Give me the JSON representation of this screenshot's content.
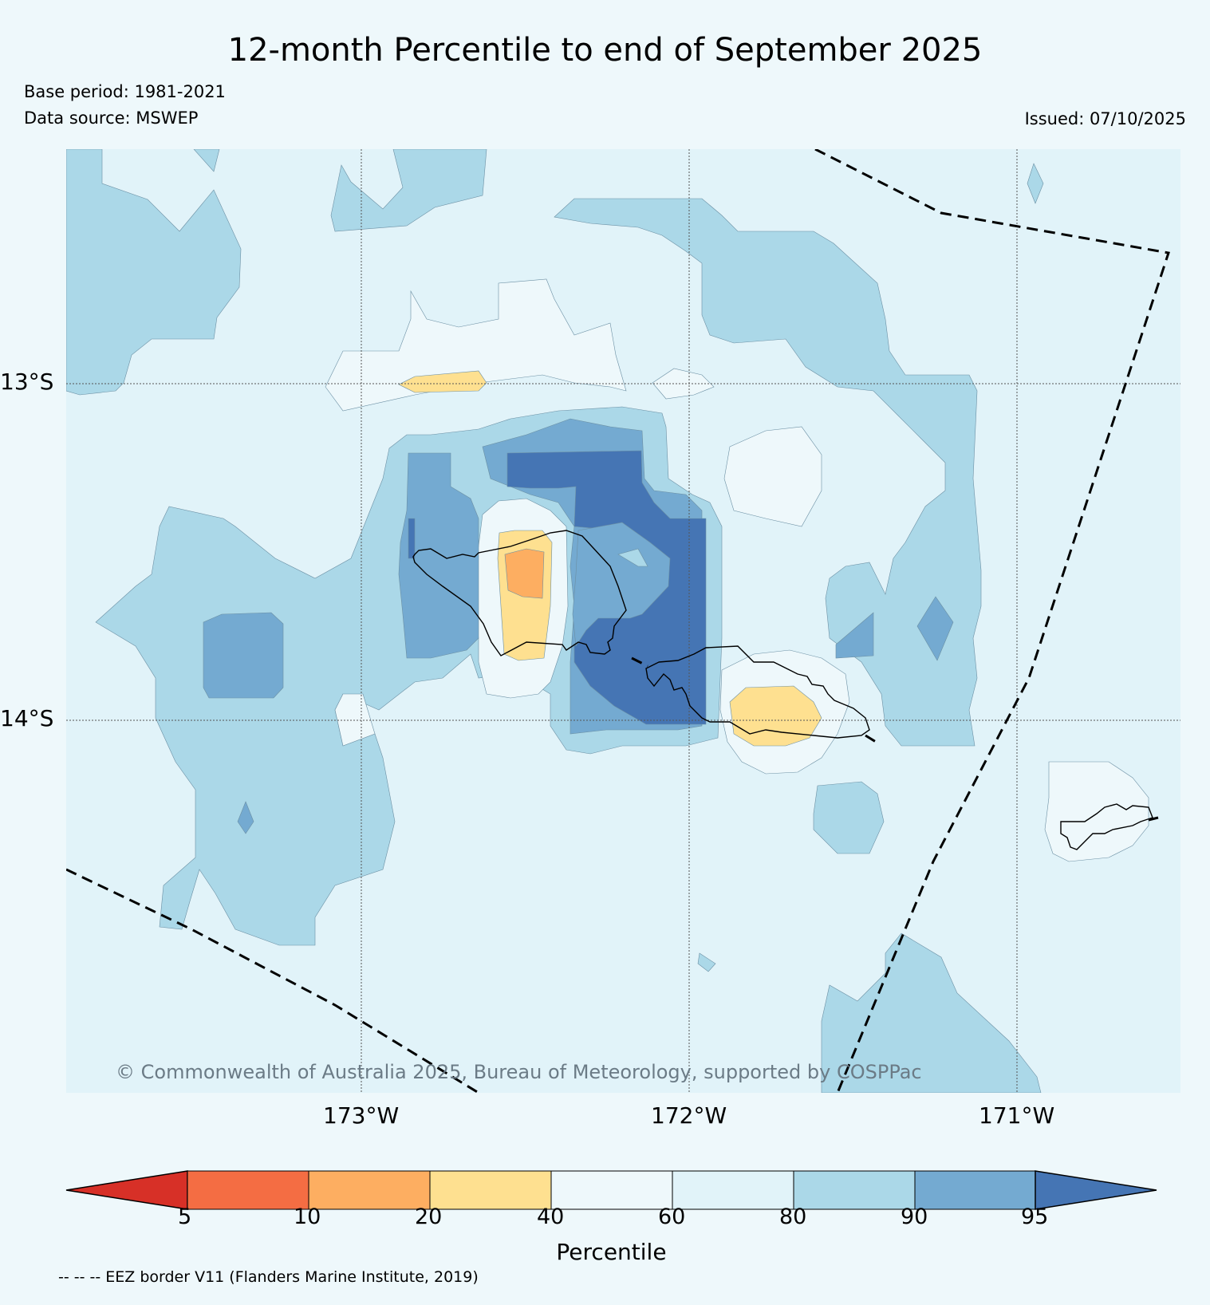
{
  "header": {
    "title": "12-month Percentile to end of September 2025",
    "base_period": "Base period: 1981-2021",
    "data_source": "Data source: MSWEP",
    "issued": "Issued: 07/10/2025"
  },
  "map": {
    "lat_labels": [
      "13°S",
      "14°S"
    ],
    "lon_labels": [
      "173°W",
      "172°W",
      "171°W"
    ],
    "copyright": "© Commonwealth of Australia 2025, Bureau of Meteorology, supported by COSPPac",
    "colors": {
      "background": "#e1f3f9",
      "p80_90": "#abd8e8",
      "p90_95": "#74aad1",
      "p95_plus": "#4575b4",
      "p60_80": "#e1f3f9",
      "p40_60": "#eef8fb",
      "p20_40": "#fee090",
      "p10_20": "#fdae61",
      "p5_10": "#f46d43",
      "p0_5": "#d73027"
    }
  },
  "colorbar": {
    "title": "Percentile",
    "ticks": [
      "5",
      "10",
      "20",
      "40",
      "60",
      "80",
      "90",
      "95"
    ],
    "colors": [
      "#d73027",
      "#f46d43",
      "#fdae61",
      "#fee090",
      "#eef8fb",
      "#e1f3f9",
      "#abd8e8",
      "#74aad1",
      "#4575b4"
    ]
  },
  "footer": {
    "eez_note": "-- -- -- EEZ border V11 (Flanders Marine Institute, 2019)"
  }
}
